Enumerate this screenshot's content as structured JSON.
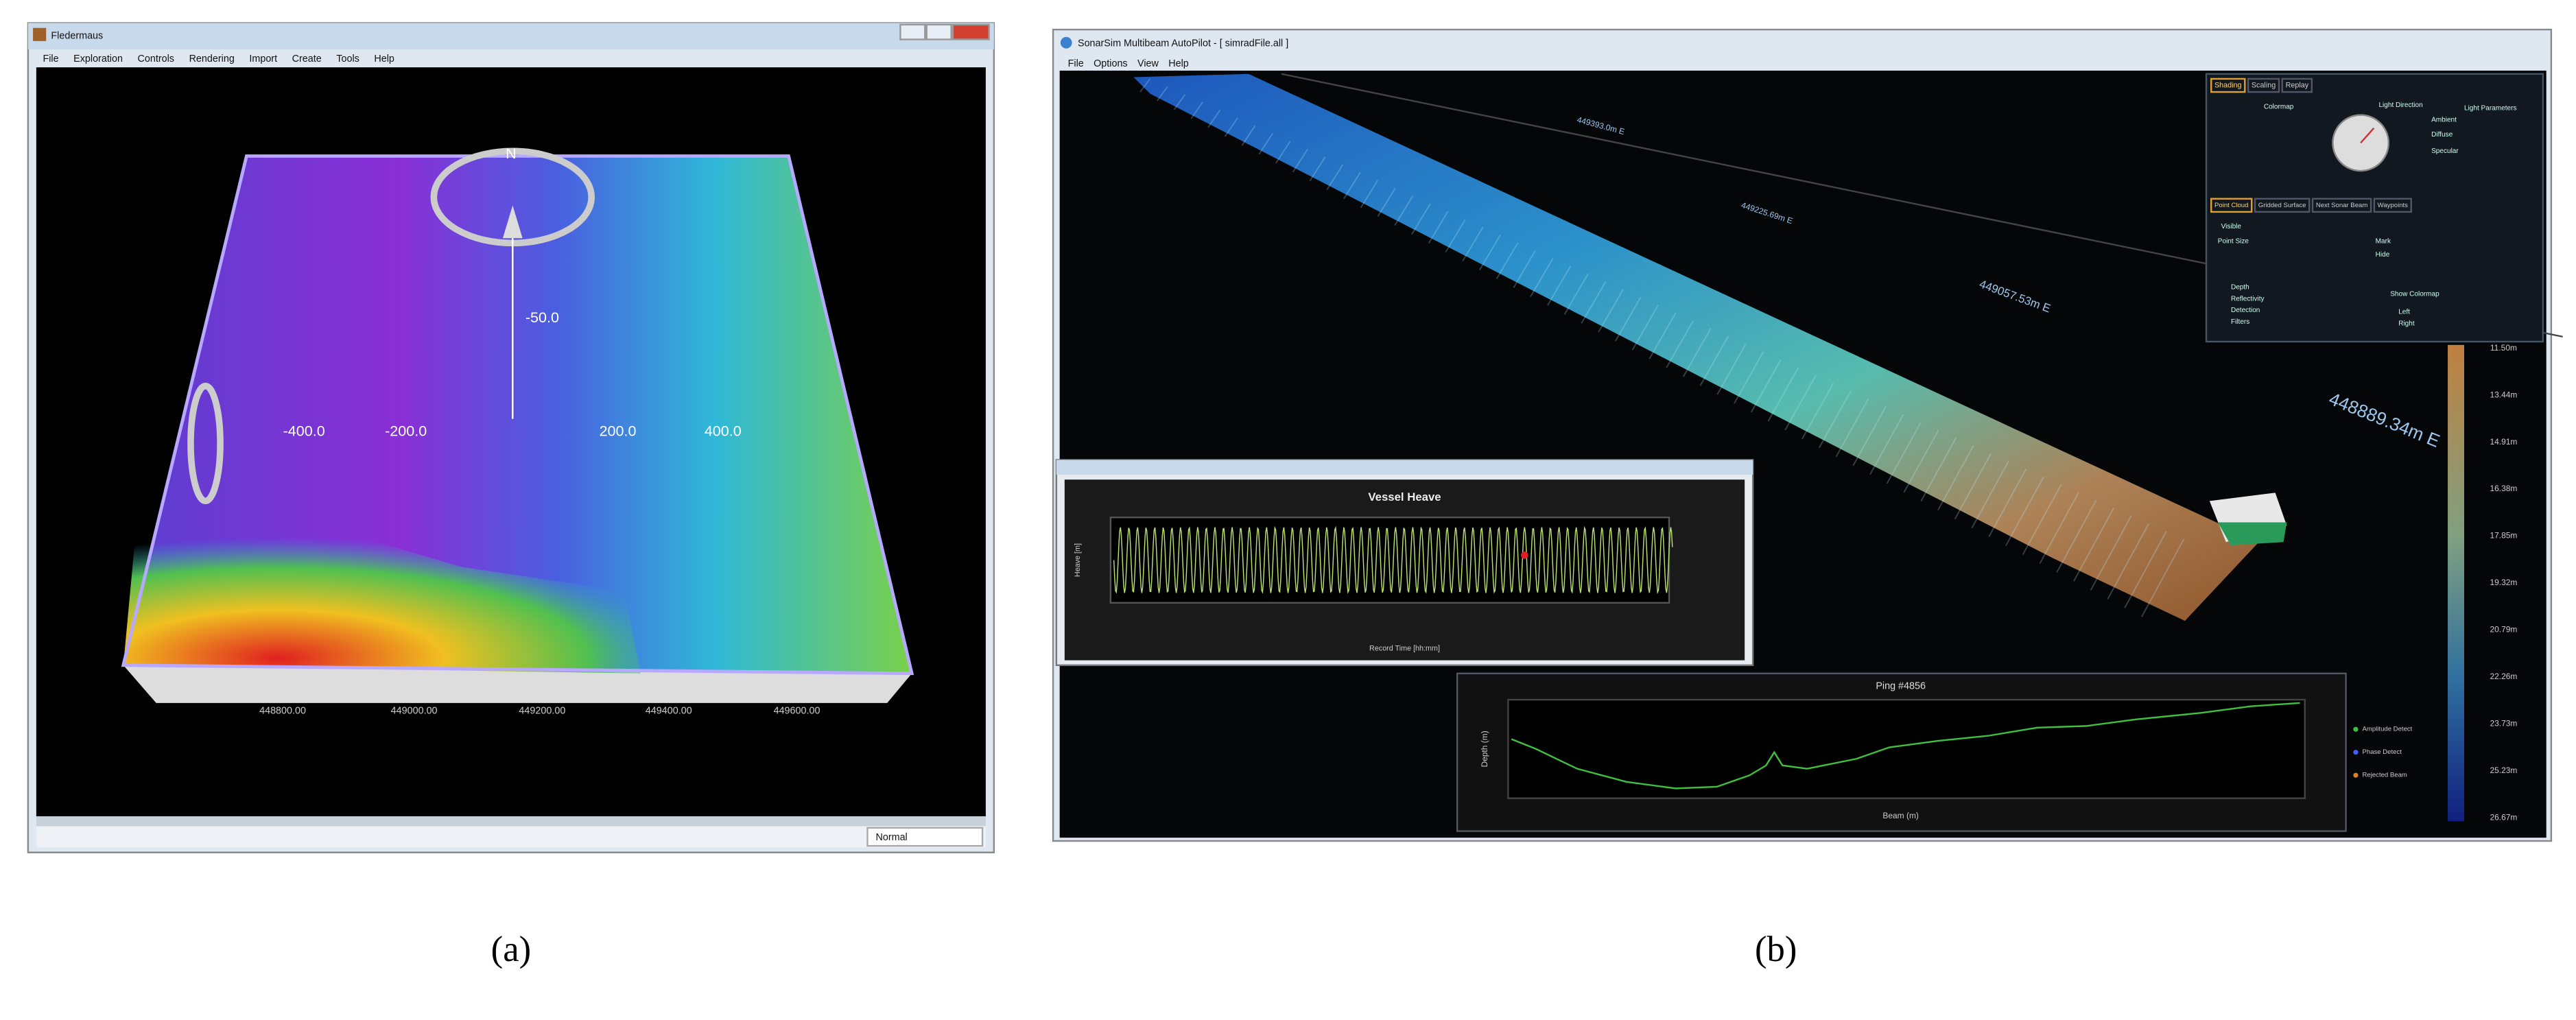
{
  "panel_a": {
    "window_title": "Fledermaus",
    "menu": [
      "File",
      "Exploration",
      "Controls",
      "Rendering",
      "Import",
      "Create",
      "Tools",
      "Help"
    ],
    "north": "N",
    "depth_label": "-50.0",
    "grid_labels": [
      "-400.0",
      "-200.0",
      "200.0",
      "400.0"
    ],
    "easting_labels": [
      "448800.00",
      "449000.00",
      "449200.00",
      "449400.00",
      "449600.00"
    ],
    "status": "Normal",
    "caption": "(a)"
  },
  "panel_b": {
    "window_title": "SonarSim Multibeam AutoPilot - [ simradFile.all ]",
    "menu": [
      "File",
      "Options",
      "View",
      "Help"
    ],
    "easting_labels": [
      "449393.0m E",
      "449225.69m E",
      "449057.53m E",
      "448889.34m E"
    ],
    "tabs_top": [
      "Shading",
      "Scaling",
      "Replay"
    ],
    "tabs_mid": [
      "Point Cloud",
      "Gridded Surface",
      "Next Sonar Beam",
      "Waypoints"
    ],
    "controls": [
      "Colormap",
      "Light Direction",
      "Light Parameters",
      "Ambient",
      "Diffuse",
      "Specular",
      "Visible",
      "Point Size",
      "Depth",
      "Reflectivity",
      "Detection",
      "Filters",
      "Mark",
      "Hide",
      "Show Colormap",
      "Left",
      "Right"
    ],
    "colorbar_labels": [
      "11.50m",
      "13.44m",
      "14.91m",
      "16.38m",
      "17.85m",
      "19.32m",
      "20.79m",
      "22.26m",
      "23.73m",
      "25.23m",
      "26.67m"
    ],
    "heave": {
      "title": "Vessel Heave",
      "x_label": "Record Time [hh:mm]",
      "y_label": "Heave [m]"
    },
    "ping": {
      "title": "Ping #4856",
      "x_label": "Beam (m)",
      "y_label": "Depth (m)",
      "legend": [
        "Amplitude Detect",
        "Phase Detect",
        "Rejected Beam"
      ]
    },
    "caption": "(b)"
  }
}
